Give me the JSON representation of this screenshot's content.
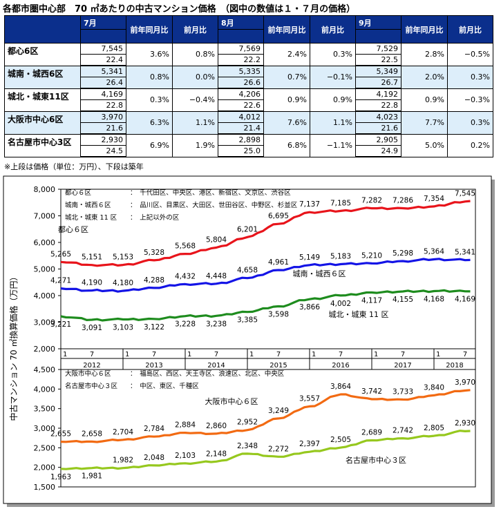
{
  "title": "各都市圏中心部　70 ㎡あたりの中古マンション価格　（図中の数値は１・７月の価格）",
  "table": {
    "months": [
      "7月",
      "8月",
      "9月"
    ],
    "sub_headers": [
      "前年同月比",
      "前月比"
    ],
    "rows": [
      {
        "region": "都心6区",
        "cells": [
          {
            "price": "7,545",
            "age": "22.4",
            "yoy": "3.6%",
            "mom": "0.8%"
          },
          {
            "price": "7,569",
            "age": "22.2",
            "yoy": "2.4%",
            "mom": "0.3%"
          },
          {
            "price": "7,529",
            "age": "22.5",
            "yoy": "2.8%",
            "mom": "−0.5%"
          }
        ]
      },
      {
        "region": "城南・城西6区",
        "cells": [
          {
            "price": "5,341",
            "age": "26.4",
            "yoy": "0.8%",
            "mom": "0.0%"
          },
          {
            "price": "5,335",
            "age": "26.6",
            "yoy": "0.7%",
            "mom": "−0.1%"
          },
          {
            "price": "5,349",
            "age": "26.7",
            "yoy": "2.0%",
            "mom": "0.3%"
          }
        ]
      },
      {
        "region": "城北・城東11区",
        "cells": [
          {
            "price": "4,169",
            "age": "22.8",
            "yoy": "0.3%",
            "mom": "−0.4%"
          },
          {
            "price": "4,206",
            "age": "22.6",
            "yoy": "0.9%",
            "mom": "0.9%"
          },
          {
            "price": "4,192",
            "age": "22.8",
            "yoy": "0.9%",
            "mom": "−0.3%"
          }
        ]
      },
      {
        "region": "大阪市中心6区",
        "cells": [
          {
            "price": "3,970",
            "age": "21.6",
            "yoy": "6.3%",
            "mom": "1.1%"
          },
          {
            "price": "4,012",
            "age": "21.4",
            "yoy": "7.6%",
            "mom": "1.1%"
          },
          {
            "price": "4,023",
            "age": "21.6",
            "yoy": "7.7%",
            "mom": "0.3%"
          }
        ]
      },
      {
        "region": "名古屋市中心3区",
        "cells": [
          {
            "price": "2,930",
            "age": "24.5",
            "yoy": "6.9%",
            "mom": "1.9%"
          },
          {
            "price": "2,898",
            "age": "25.0",
            "yoy": "6.8%",
            "mom": "−1.1%"
          },
          {
            "price": "2,905",
            "age": "24.9",
            "yoy": "5.0%",
            "mom": "0.2%"
          }
        ]
      }
    ]
  },
  "note": "※上段は価格（単位：万円）、下段は築年",
  "chart_data": [
    {
      "type": "line",
      "ylabel": "中古マンション 70 ㎡換算価格（万円）",
      "ylim": [
        2000,
        8000
      ],
      "yticks": [
        "2,000",
        "3,000",
        "4,000",
        "5,000",
        "6,000",
        "7,000",
        "8,000"
      ],
      "x_axis": {
        "years": [
          "2012",
          "2013",
          "2014",
          "2015",
          "2016",
          "2017",
          "2018"
        ],
        "month_labels": [
          "1",
          "7"
        ]
      },
      "legend": [
        {
          "name": "都心６区",
          "desc": "：　千代田区、中央区、港区、新宿区、文京区、渋谷区"
        },
        {
          "name": "城南・城西６区",
          "desc": "：　品川区、目黒区、大田区、世田谷区、中野区、杉並区"
        },
        {
          "name": "城北・城東 11 区",
          "desc": "：　上記以外の区"
        }
      ],
      "series": [
        {
          "name": "都心６区",
          "color": "#e8141b",
          "labels": [
            "5,265",
            "5,151",
            "5,153",
            "5,328",
            "5,568",
            "5,804",
            "6,201",
            "6,695",
            "7,137",
            "7,185",
            "7,282",
            "7,286",
            "7,354",
            "7,545"
          ],
          "values": [
            5265,
            5151,
            5153,
            5328,
            5568,
            5804,
            6201,
            6695,
            7137,
            7185,
            7282,
            7286,
            7354,
            7545
          ]
        },
        {
          "name": "城南・城西６区",
          "color": "#1414e6",
          "labels": [
            "4,271",
            "4,190",
            "4,180",
            "4,288",
            "4,432",
            "4,448",
            "4,658",
            "4,961",
            "5,149",
            "5,183",
            "5,210",
            "5,298",
            "5,364",
            "5,341"
          ],
          "values": [
            4271,
            4190,
            4180,
            4288,
            4432,
            4448,
            4658,
            4961,
            5149,
            5183,
            5210,
            5298,
            5364,
            5341
          ]
        },
        {
          "name": "城北・城東 11 区",
          "color": "#1e8c1e",
          "labels": [
            "3,221",
            "3,091",
            "3,103",
            "3,122",
            "3,228",
            "3,238",
            "3,385",
            "3,598",
            "3,866",
            "4,002",
            "4,117",
            "4,155",
            "4,168",
            "4,169"
          ],
          "values": [
            3221,
            3091,
            3103,
            3122,
            3228,
            3238,
            3385,
            3598,
            3866,
            4002,
            4117,
            4155,
            4168,
            4169
          ]
        }
      ],
      "line_labels": [
        "都心６区",
        "城南・城西６区",
        "城北・城東 11 区"
      ]
    },
    {
      "type": "line",
      "ylim": [
        1500,
        4500
      ],
      "yticks": [
        "1,500",
        "2,000",
        "2,500",
        "3,000",
        "3,500",
        "4,000",
        "4,500"
      ],
      "legend": [
        {
          "name": "大阪市中心６区",
          "desc": "：　福島区、西区、天王寺区、浪速区、北区、中央区"
        },
        {
          "name": "名古屋市中心３区",
          "desc": "：　中区、東区、千種区"
        }
      ],
      "series": [
        {
          "name": "大阪市中心６区",
          "color": "#f26a12",
          "labels": [
            "2,655",
            "2,658",
            "2,704",
            "2,784",
            "2,884",
            "2,860",
            "2,952",
            "3,249",
            "3,557",
            "3,864",
            "3,742",
            "3,733",
            "3,840",
            "3,970"
          ],
          "values": [
            2655,
            2658,
            2704,
            2784,
            2884,
            2860,
            2952,
            3249,
            3557,
            3864,
            3742,
            3733,
            3840,
            3970
          ]
        },
        {
          "name": "名古屋市中心３区",
          "color": "#96c81e",
          "labels": [
            "1,963",
            "1,981",
            "1,982",
            "2,048",
            "2,103",
            "2,148",
            "2,348",
            "2,272",
            "2,397",
            "2,505",
            "2,689",
            "2,742",
            "2,805",
            "2,930"
          ],
          "values": [
            1963,
            1981,
            1982,
            2048,
            2103,
            2148,
            2348,
            2272,
            2397,
            2505,
            2689,
            2742,
            2805,
            2930
          ]
        }
      ],
      "line_labels": [
        "大阪市中心６区",
        "名古屋市中心３区"
      ]
    }
  ]
}
